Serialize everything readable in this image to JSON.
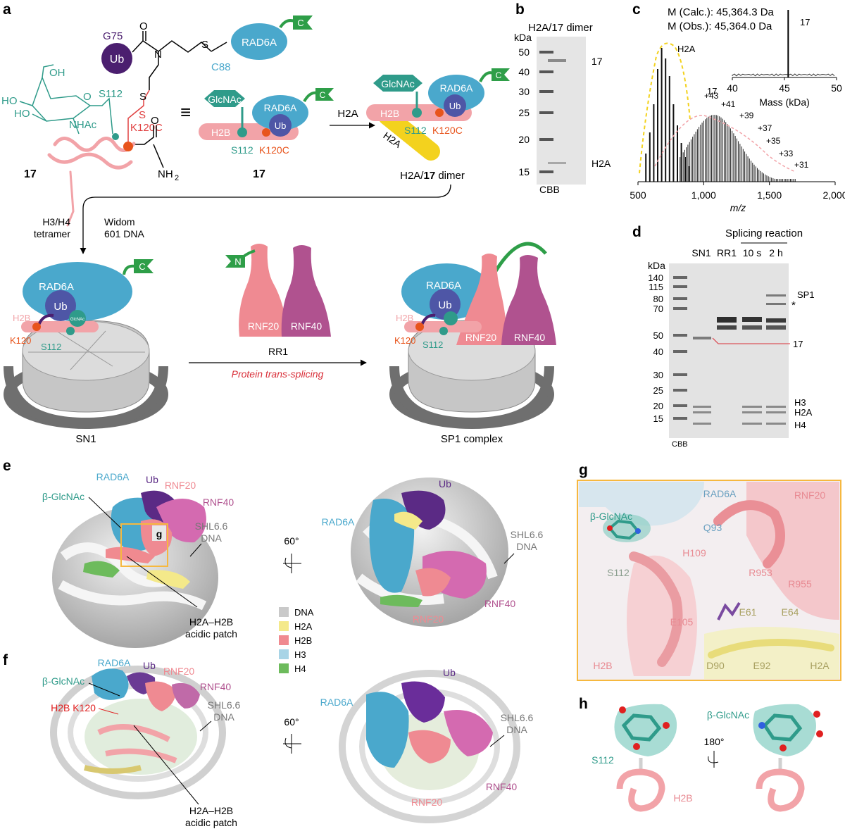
{
  "panel_labels": {
    "a": "a",
    "b": "b",
    "c": "c",
    "d": "d",
    "e": "e",
    "f": "f",
    "g": "g",
    "h": "h"
  },
  "colors": {
    "ub": "#4b1f6f",
    "rad6a": "#4aa8cc",
    "glcnac": "#2f9b8a",
    "h2b": "#f2a3a8",
    "h2a": "#f3d21e",
    "rnf20": "#ef8a92",
    "rnf40": "#b0528f",
    "intein_green": "#2e9e48",
    "k120": "#e8541c",
    "h3": "#a8d4e6",
    "h4": "#6dbb5c",
    "dna": "#c9c9c9",
    "link_red": "#d9303a",
    "dim_box": "#f6b83f"
  },
  "panel_a": {
    "chem": {
      "ub": "Ub",
      "g75": "G75",
      "o": "O",
      "n": "N",
      "s": "S",
      "c88": "C88",
      "rad6a": "RAD6A",
      "c_tag": "C",
      "oh": "OH",
      "ho1": "HO",
      "ho2": "HO",
      "o_ring": "O",
      "nhac": "NHAc",
      "s112": "S112",
      "s2": "S",
      "k120c": "K120C",
      "o2": "O",
      "nh2": "NH",
      "sub2": "2",
      "compound": "17"
    },
    "equiv": "≡",
    "schem17": {
      "glcnac": "GlcNAc",
      "rad6a": "RAD6A",
      "ub": "Ub",
      "h2b": "H2B",
      "s112": "S112",
      "k120c": "K120C",
      "c_tag": "C",
      "compound": "17"
    },
    "arrow_label": "H2A",
    "dimer": {
      "glcnac": "GlcNAc",
      "rad6a": "RAD6A",
      "ub": "Ub",
      "h2b": "H2B",
      "h2a": "H2A",
      "s112": "S112",
      "k120c": "K120C",
      "c_tag": "C",
      "caption_pre": "H2A/",
      "caption_num": "17",
      "caption_post": " dimer"
    },
    "tetramer": [
      "H3/H4",
      "tetramer"
    ],
    "widom": [
      "Widom",
      "601 DNA"
    ],
    "sn1": {
      "rad6a": "RAD6A",
      "ub": "Ub",
      "glcnac": "GlcNAc",
      "h2b": "H2B",
      "k120": "K120",
      "s112": "S112",
      "c_tag": "C",
      "caption": "SN1"
    },
    "rr1": {
      "n_tag": "N",
      "rnf20": "RNF20",
      "rnf40": "RNF40",
      "caption": "RR1"
    },
    "splice_label": "Protein trans-splicing",
    "sp1": {
      "rad6a": "RAD6A",
      "ub": "Ub",
      "h2b": "H2B",
      "k120": "K120",
      "s112": "S112",
      "rnf20": "RNF20",
      "rnf40": "RNF40",
      "caption": "SP1 complex"
    }
  },
  "panel_b": {
    "title": "H2A/17 dimer",
    "unit": "kDa",
    "ladder": [
      50,
      40,
      30,
      25,
      20,
      15
    ],
    "band_17": "17",
    "band_h2a": "H2A",
    "stain": "CBB"
  },
  "panel_c": {
    "mcalc": "M (Calc.): 45,364.3 Da",
    "mobs": "M (Obs.): 45,364.0 Da",
    "inset_label": "17",
    "inset_ticks": [
      "40",
      "45",
      "50"
    ],
    "inset_xlabel": "Mass (kDa)",
    "h2a_label": "H2A",
    "p17_label": "17",
    "charges": [
      "+43",
      "+41",
      "+39",
      "+37",
      "+35",
      "+33",
      "+31"
    ],
    "xticks": [
      "500",
      "1,000",
      "1,500",
      "2,000"
    ],
    "xlabel": "m/z"
  },
  "panel_d": {
    "header": "Splicing reaction",
    "lanes": [
      "SN1",
      "RR1",
      "10 s",
      "2 h"
    ],
    "unit": "kDa",
    "ladder": [
      140,
      115,
      80,
      70,
      50,
      40,
      30,
      25,
      20,
      15
    ],
    "right_labels": {
      "sp1": "SP1",
      "star": "*",
      "p17": "17",
      "h3": "H3",
      "h2a": "H2A",
      "h4": "H4"
    },
    "stain": "CBB"
  },
  "panel_e": {
    "left": {
      "rad6a": "RAD6A",
      "ub": "Ub",
      "rnf20": "RNF20",
      "rnf40": "RNF40",
      "glcnac": "β-GlcNAc",
      "shl": [
        "SHL6.6",
        "DNA"
      ],
      "box": "g",
      "patch": [
        "H2A–H2B",
        "acidic patch"
      ]
    },
    "rot": "60°",
    "right": {
      "ub": "Ub",
      "rad6a": "RAD6A",
      "shl": [
        "SHL6.6",
        "DNA"
      ],
      "rnf40": "RNF40",
      "rnf20": "RNF20"
    }
  },
  "legend": [
    {
      "label": "DNA",
      "color": "#c9c9c9"
    },
    {
      "label": "H2A",
      "color": "#f4e98a"
    },
    {
      "label": "H2B",
      "color": "#f08a90"
    },
    {
      "label": "H3",
      "color": "#a8d4e6"
    },
    {
      "label": "H4",
      "color": "#6dbb5c"
    }
  ],
  "panel_f": {
    "left": {
      "rad6a": "RAD6A",
      "ub": "Ub",
      "rnf20": "RNF20",
      "rnf40": "RNF40",
      "glcnac": "β-GlcNAc",
      "k120": "H2B K120",
      "shl": [
        "SHL6.6",
        "DNA"
      ],
      "patch": [
        "H2A–H2B",
        "acidic patch"
      ]
    },
    "rot": "60°",
    "right": {
      "ub": "Ub",
      "rad6a": "RAD6A",
      "shl": [
        "SHL6.6",
        "DNA"
      ],
      "rnf40": "RNF40",
      "rnf20": "RNF20"
    }
  },
  "panel_g": {
    "rad6a": "RAD6A",
    "rnf20": "RNF20",
    "glcnac": "β-GlcNAc",
    "q93": "Q93",
    "s112": "S112",
    "h109": "H109",
    "r953": "R953",
    "r955": "R955",
    "e61": "E61",
    "e64": "E64",
    "e105": "E105",
    "h2b": "H2B",
    "d90": "D90",
    "e92": "E92",
    "h2a": "H2A"
  },
  "panel_h": {
    "glcnac": "β-GlcNAc",
    "rot": "180°",
    "s112": "S112",
    "h2b": "H2B"
  }
}
